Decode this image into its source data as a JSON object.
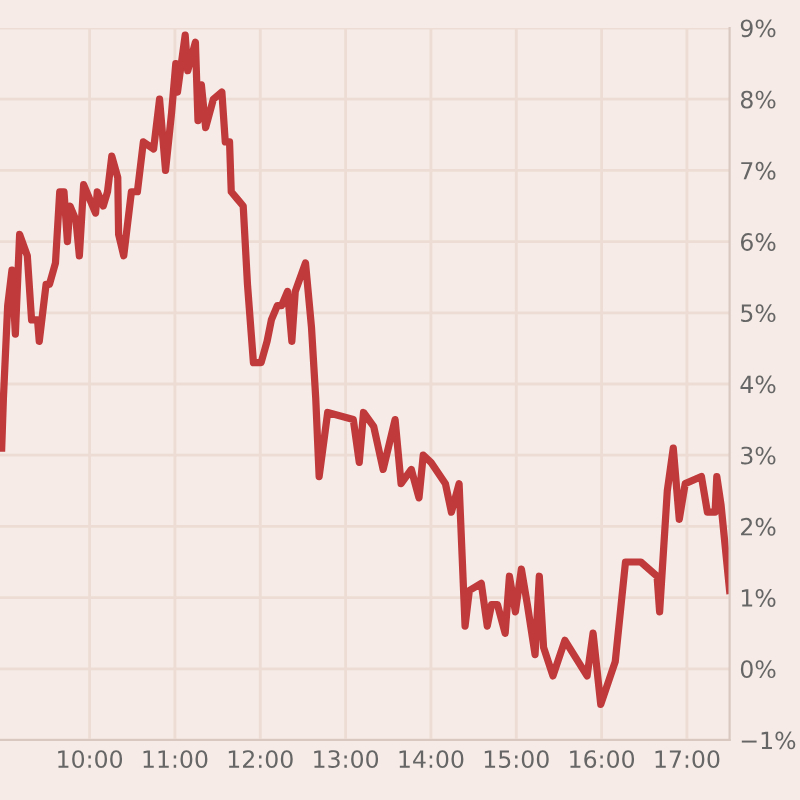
{
  "chart_data": {
    "type": "line",
    "x": [
      8.97,
      8.99,
      9.04,
      9.09,
      9.13,
      9.18,
      9.27,
      9.32,
      9.39,
      9.41,
      9.49,
      9.53,
      9.6,
      9.65,
      9.7,
      9.74,
      9.77,
      9.84,
      9.88,
      9.93,
      10.0,
      10.07,
      10.09,
      10.16,
      10.21,
      10.26,
      10.33,
      10.34,
      10.4,
      10.49,
      10.56,
      10.63,
      10.75,
      10.82,
      10.89,
      10.96,
      11.01,
      11.03,
      11.12,
      11.15,
      11.24,
      11.27,
      11.31,
      11.36,
      11.45,
      11.55,
      11.59,
      11.64,
      11.66,
      11.73,
      11.8,
      11.85,
      11.92,
      12.01,
      12.08,
      12.13,
      12.2,
      12.25,
      12.32,
      12.37,
      12.41,
      12.53,
      12.6,
      12.65,
      12.69,
      12.79,
      13.09,
      13.16,
      13.21,
      13.33,
      13.44,
      13.58,
      13.65,
      13.77,
      13.86,
      13.91,
      14.0,
      14.17,
      14.24,
      14.33,
      14.4,
      14.45,
      14.59,
      14.66,
      14.71,
      14.78,
      14.87,
      14.92,
      14.99,
      15.06,
      15.13,
      15.22,
      15.27,
      15.32,
      15.43,
      15.57,
      15.83,
      15.9,
      15.99,
      16.16,
      16.28,
      16.46,
      16.65,
      16.68,
      16.77,
      16.84,
      16.91,
      16.98,
      17.17,
      17.24,
      17.33,
      17.35,
      17.4,
      17.5
    ],
    "series": [
      {
        "color": "#c0393b",
        "values": [
          3.1,
          3.8,
          5.1,
          5.6,
          4.7,
          6.1,
          5.8,
          4.9,
          4.9,
          4.6,
          5.4,
          5.4,
          5.7,
          6.7,
          6.7,
          6.0,
          6.5,
          6.3,
          5.8,
          6.8,
          6.6,
          6.4,
          6.7,
          6.5,
          6.7,
          7.2,
          6.9,
          6.1,
          5.8,
          6.7,
          6.7,
          7.4,
          7.3,
          8.0,
          7.0,
          7.8,
          8.5,
          8.1,
          8.9,
          8.4,
          8.8,
          7.7,
          8.2,
          7.6,
          8.0,
          8.1,
          7.4,
          7.4,
          6.7,
          6.6,
          6.5,
          5.4,
          4.3,
          4.3,
          4.6,
          4.9,
          5.1,
          5.1,
          5.3,
          4.6,
          5.3,
          5.7,
          4.8,
          3.8,
          2.7,
          3.6,
          3.5,
          2.9,
          3.6,
          3.4,
          2.8,
          3.5,
          2.6,
          2.8,
          2.4,
          3.0,
          2.9,
          2.6,
          2.2,
          2.6,
          0.6,
          1.1,
          1.2,
          0.6,
          0.9,
          0.9,
          0.5,
          1.3,
          0.8,
          1.4,
          0.9,
          0.2,
          1.3,
          0.3,
          -0.1,
          0.4,
          -0.1,
          0.5,
          -0.5,
          0.1,
          1.5,
          1.5,
          1.3,
          0.8,
          2.5,
          3.1,
          2.1,
          2.6,
          2.7,
          2.2,
          2.2,
          2.7,
          2.3,
          1.1
        ]
      }
    ],
    "xlim": [
      8.95,
      17.5
    ],
    "ylim": [
      -1,
      9
    ],
    "xticks": [
      {
        "value": 10,
        "label": "10:00"
      },
      {
        "value": 11,
        "label": "11:00"
      },
      {
        "value": 12,
        "label": "12:00"
      },
      {
        "value": 13,
        "label": "13:00"
      },
      {
        "value": 14,
        "label": "14:00"
      },
      {
        "value": 15,
        "label": "15:00"
      },
      {
        "value": 16,
        "label": "16:00"
      },
      {
        "value": 17,
        "label": "17:00"
      }
    ],
    "yticks": [
      {
        "value": -1,
        "label": "−1%"
      },
      {
        "value": 0,
        "label": "0%"
      },
      {
        "value": 1,
        "label": "1%"
      },
      {
        "value": 2,
        "label": "2%"
      },
      {
        "value": 3,
        "label": "3%"
      },
      {
        "value": 4,
        "label": "4%"
      },
      {
        "value": 5,
        "label": "5%"
      },
      {
        "value": 6,
        "label": "6%"
      },
      {
        "value": 7,
        "label": "7%"
      },
      {
        "value": 8,
        "label": "8%"
      },
      {
        "value": 9,
        "label": "9%"
      }
    ],
    "grid": true,
    "legend": false,
    "marker": "none",
    "line_style": "solid"
  }
}
